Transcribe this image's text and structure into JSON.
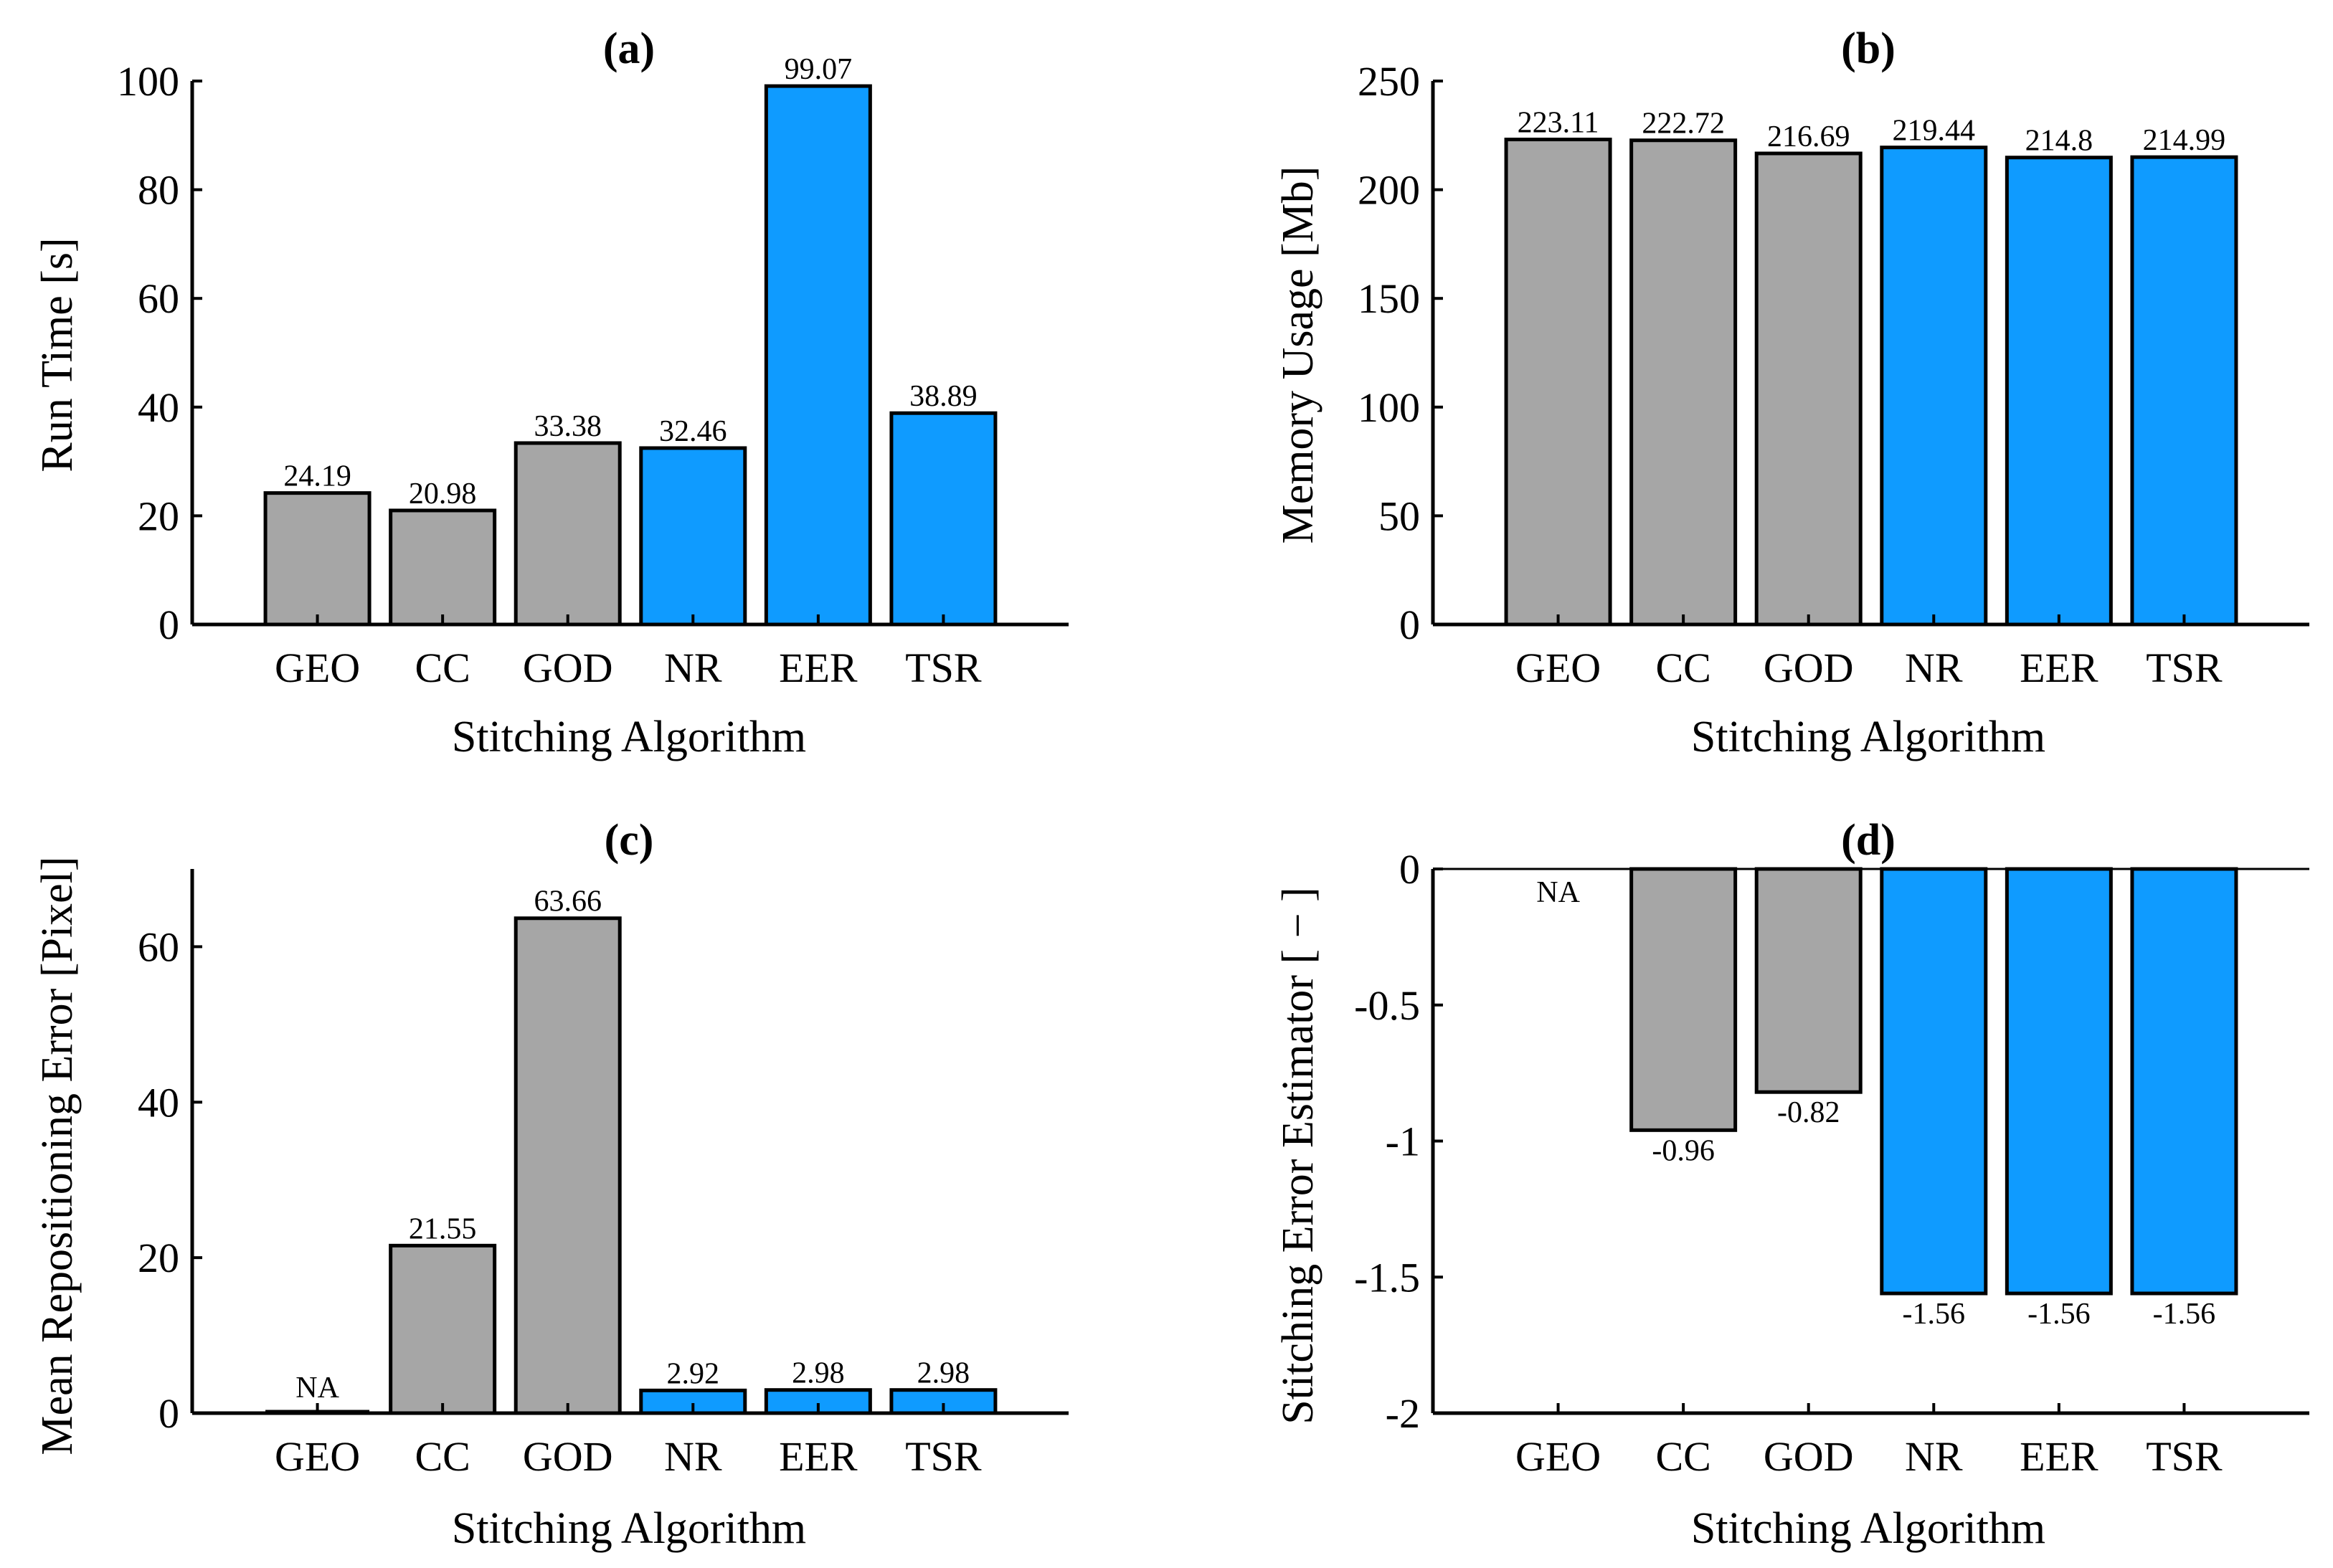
{
  "chart_data": [
    {
      "type": "bar",
      "title": "(a)",
      "xlabel": "Stitching Algorithm",
      "ylabel": "Run Time [s]",
      "categories": [
        "GEO",
        "CC",
        "GOD",
        "NR",
        "EER",
        "TSR"
      ],
      "values": [
        24.19,
        20.98,
        33.38,
        32.46,
        99.07,
        38.89
      ],
      "value_labels": [
        "24.19",
        "20.98",
        "33.38",
        "32.46",
        "99.07",
        "38.89"
      ],
      "bar_colors": [
        "#a6a6a6",
        "#a6a6a6",
        "#a6a6a6",
        "#0f9bff",
        "#0f9bff",
        "#0f9bff"
      ],
      "ylim": [
        0,
        100
      ],
      "yticks": [
        0,
        20,
        40,
        60,
        80,
        100
      ],
      "ytick_labels": [
        "0",
        "20",
        "40",
        "60",
        "80",
        "100"
      ]
    },
    {
      "type": "bar",
      "title": "(b)",
      "xlabel": "Stitching Algorithm",
      "ylabel": "Memory Usage [Mb]",
      "categories": [
        "GEO",
        "CC",
        "GOD",
        "NR",
        "EER",
        "TSR"
      ],
      "values": [
        223.11,
        222.72,
        216.69,
        219.44,
        214.8,
        214.99
      ],
      "value_labels": [
        "223.11",
        "222.72",
        "216.69",
        "219.44",
        "214.8",
        "214.99"
      ],
      "bar_colors": [
        "#a6a6a6",
        "#a6a6a6",
        "#a6a6a6",
        "#0f9bff",
        "#0f9bff",
        "#0f9bff"
      ],
      "ylim": [
        0,
        250
      ],
      "yticks": [
        0,
        50,
        100,
        150,
        200,
        250
      ],
      "ytick_labels": [
        "0",
        "50",
        "100",
        "150",
        "200",
        "250"
      ]
    },
    {
      "type": "bar",
      "title": "(c)",
      "xlabel": "Stitching Algorithm",
      "ylabel": "Mean Repositioning Error [Pixel]",
      "categories": [
        "GEO",
        "CC",
        "GOD",
        "NR",
        "EER",
        "TSR"
      ],
      "values": [
        0,
        21.55,
        63.66,
        2.92,
        2.98,
        2.98
      ],
      "value_labels": [
        "NA",
        "21.55",
        "63.66",
        "2.92",
        "2.98",
        "2.98"
      ],
      "bar_colors": [
        "#a6a6a6",
        "#a6a6a6",
        "#a6a6a6",
        "#0f9bff",
        "#0f9bff",
        "#0f9bff"
      ],
      "ylim": [
        0,
        70
      ],
      "yticks": [
        0,
        20,
        40,
        60
      ],
      "ytick_labels": [
        "0",
        "20",
        "40",
        "60"
      ]
    },
    {
      "type": "bar",
      "title": "(d)",
      "xlabel": "Stitching Algorithm",
      "ylabel": "Stitching Error Estimator [ − ]",
      "categories": [
        "GEO",
        "CC",
        "GOD",
        "NR",
        "EER",
        "TSR"
      ],
      "values": [
        0,
        -0.96,
        -0.82,
        -1.56,
        -1.56,
        -1.56
      ],
      "value_labels": [
        "NA",
        "-0.96",
        "-0.82",
        "-1.56",
        "-1.56",
        "-1.56"
      ],
      "bar_colors": [
        "#a6a6a6",
        "#a6a6a6",
        "#a6a6a6",
        "#0f9bff",
        "#0f9bff",
        "#0f9bff"
      ],
      "ylim": [
        -2,
        0
      ],
      "yticks": [
        -2,
        -1.5,
        -1,
        -0.5,
        0
      ],
      "ytick_labels": [
        "-2",
        "-1.5",
        "-1",
        "-0.5",
        "0"
      ]
    }
  ]
}
